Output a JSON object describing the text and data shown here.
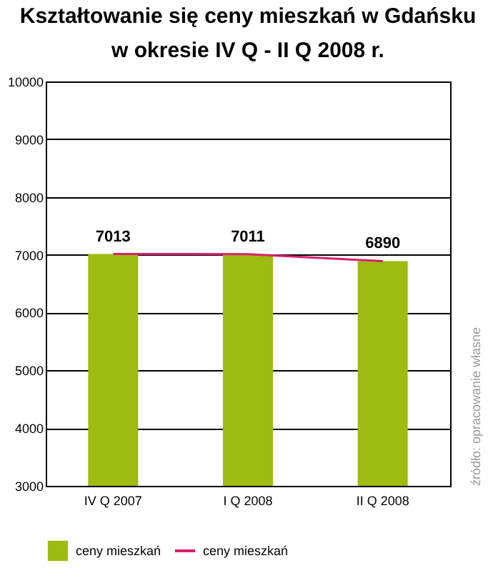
{
  "chart_data": {
    "type": "bar",
    "title": "Kształtowanie się ceny mieszkań w Gdańsku\nw okresie IV Q - II Q 2008 r.",
    "categories": [
      "IV Q 2007",
      "I Q 2008",
      "II Q 2008"
    ],
    "series": [
      {
        "name": "ceny mieszkań",
        "color": "#9dbb10",
        "values": [
          7013,
          7011,
          6890
        ],
        "value_labels": [
          "7013",
          "7011",
          "6890"
        ]
      },
      {
        "name": "ceny mieszkań",
        "type": "line",
        "color": "#d8206e",
        "values": [
          7013,
          7011,
          6890
        ]
      }
    ],
    "ylim": [
      3000,
      10000
    ],
    "yticks": [
      3000,
      4000,
      5000,
      6000,
      7000,
      8000,
      9000,
      10000
    ],
    "grid": "y",
    "legend": "bottom",
    "marker": "none",
    "line_style": "solid",
    "annotations": [
      "źródło: opracowanie własne"
    ]
  }
}
